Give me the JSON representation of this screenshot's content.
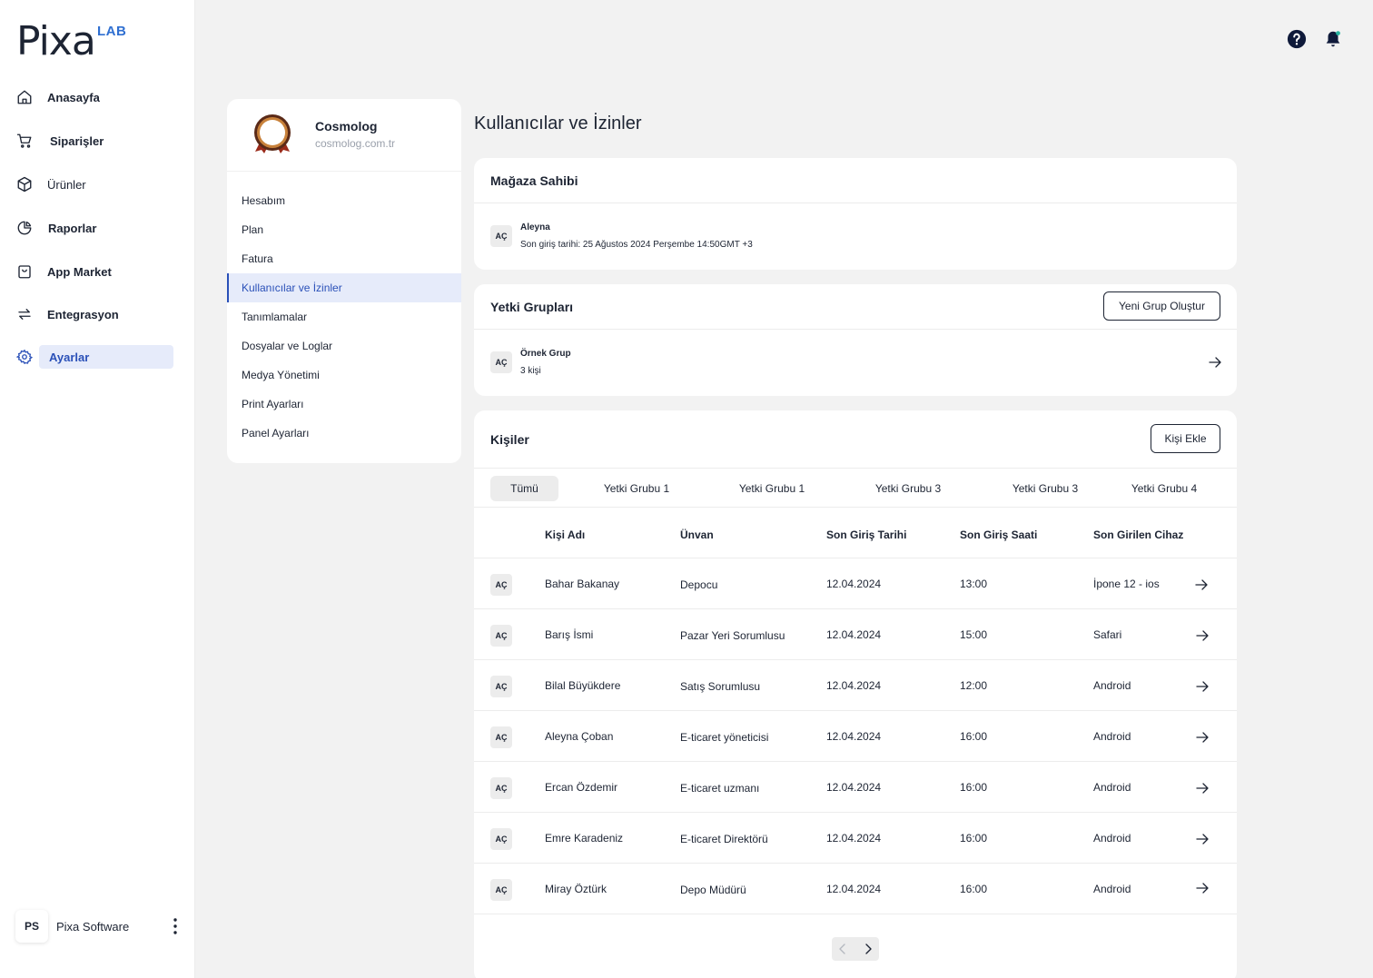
{
  "brand": {
    "name": "Pixa",
    "sup": "LAB"
  },
  "nav": [
    {
      "label": "Anasayfa",
      "icon": "home-icon"
    },
    {
      "label": "Siparişler",
      "icon": "cart-icon"
    },
    {
      "label": "Ürünler",
      "icon": "box-icon"
    },
    {
      "label": "Raporlar",
      "icon": "pie-chart-icon"
    },
    {
      "label": "App Market",
      "icon": "shopping-bag-icon"
    },
    {
      "label": "Entegrasyon",
      "icon": "sync-icon"
    },
    {
      "label": "Ayarlar",
      "icon": "gear-icon",
      "active": true
    }
  ],
  "user": {
    "initials": "PS",
    "name": "Pixa Software"
  },
  "store": {
    "name": "Cosmolog",
    "url": "cosmolog.com.tr"
  },
  "settings_menu": [
    "Hesabım",
    "Plan",
    "Fatura",
    "Kullanıcılar ve İzinler",
    "Tanımlamalar",
    "Dosyalar ve Loglar",
    "Medya Yönetimi",
    "Print Ayarları",
    "Panel Ayarları"
  ],
  "page_title": "Kullanıcılar ve İzinler",
  "owner": {
    "title": "Mağaza Sahibi",
    "badge": "AÇ",
    "name": "Aleyna",
    "last_login": "Son giriş tarihi: 25 Ağustos 2024 Perşembe 14:50GMT +3"
  },
  "groups": {
    "title": "Yetki Grupları",
    "new_button": "Yeni Grup Oluştur",
    "badge": "AÇ",
    "name": "Örnek Grup",
    "count": "3 kişi"
  },
  "people": {
    "title": "Kişiler",
    "add_button": "Kişi Ekle",
    "tabs": [
      "Tümü",
      "Yetki Grubu 1",
      "Yetki Grubu 1",
      "Yetki Grubu 3",
      "Yetki Grubu 3",
      "Yetki Grubu 4"
    ],
    "columns": [
      "Kişi Adı",
      "Ünvan",
      "Son Giriş Tarihi",
      "Son Giriş Saati",
      "Son Girilen Cihaz"
    ],
    "rows": [
      {
        "badge": "AÇ",
        "name": "Bahar Bakanay",
        "title": "Depocu",
        "date": "12.04.2024",
        "time": "13:00",
        "device": "İpone 12 - ios"
      },
      {
        "badge": "AÇ",
        "name": "Barış İsmi",
        "title": "Pazar Yeri Sorumlusu",
        "date": "12.04.2024",
        "time": "15:00",
        "device": "Safari"
      },
      {
        "badge": "AÇ",
        "name": "Bilal Büyükdere",
        "title": "Satış Sorumlusu",
        "date": "12.04.2024",
        "time": "12:00",
        "device": "Android"
      },
      {
        "badge": "AÇ",
        "name": "Aleyna Çoban",
        "title": "E-ticaret yöneticisi",
        "date": "12.04.2024",
        "time": "16:00",
        "device": "Android"
      },
      {
        "badge": "AÇ",
        "name": "Ercan Özdemir",
        "title": "E-ticaret uzmanı",
        "date": "12.04.2024",
        "time": "16:00",
        "device": "Android"
      },
      {
        "badge": "AÇ",
        "name": "Emre Karadeniz",
        "title": "E-ticaret Direktörü",
        "date": "12.04.2024",
        "time": "16:00",
        "device": "Android"
      },
      {
        "badge": "AÇ",
        "name": "Miray Öztürk",
        "title": "Depo Müdürü",
        "date": "12.04.2024",
        "time": "16:00",
        "device": "Android"
      }
    ]
  }
}
